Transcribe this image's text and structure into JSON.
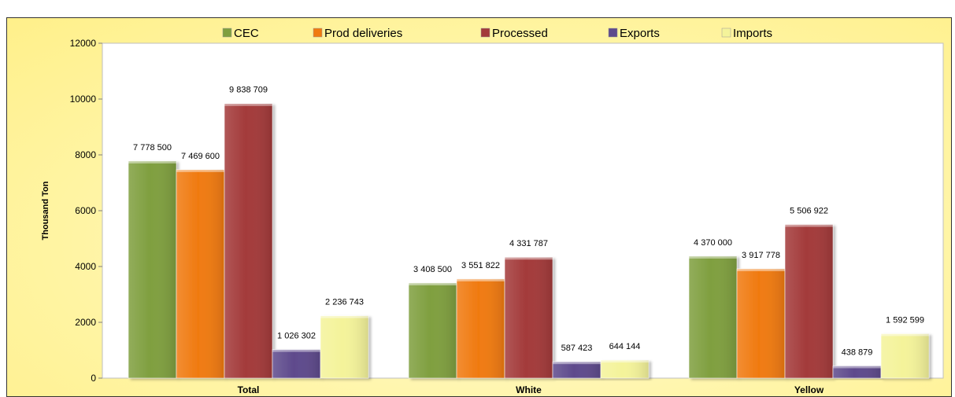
{
  "chart_data": {
    "type": "bar",
    "title": "",
    "xlabel": "",
    "ylabel": "Thousand Ton",
    "ylim": [
      0,
      12000
    ],
    "yticks": [
      0,
      2000,
      4000,
      6000,
      8000,
      10000,
      12000
    ],
    "grid": false,
    "legend_position": "top",
    "categories": [
      "Total",
      "White",
      "Yellow"
    ],
    "series": [
      {
        "name": "CEC",
        "color": "#7f9f3f",
        "values": [
          7778.5,
          3408.5,
          4370.0
        ],
        "labels": [
          "7 778 500",
          "3 408 500",
          "4 370 000"
        ]
      },
      {
        "name": "Prod deliveries",
        "color": "#f07a10",
        "values": [
          7469.6,
          3551.822,
          3917.778
        ],
        "labels": [
          "7 469 600",
          "3 551 822",
          "3 917 778"
        ]
      },
      {
        "name": "Processed",
        "color": "#a33a3a",
        "values": [
          9838.709,
          4331.787,
          5506.922
        ],
        "labels": [
          "9 838 709",
          "4 331 787",
          "5 506 922"
        ]
      },
      {
        "name": "Exports",
        "color": "#5e4a8c",
        "values": [
          1026.302,
          587.423,
          438.879
        ],
        "labels": [
          "1 026 302",
          "587 423",
          "438 879"
        ]
      },
      {
        "name": "Imports",
        "color": "#f4f39a",
        "values": [
          2236.743,
          644.144,
          1592.599
        ],
        "labels": [
          "2 236 743",
          "644 144",
          "1 592 599"
        ]
      }
    ]
  }
}
